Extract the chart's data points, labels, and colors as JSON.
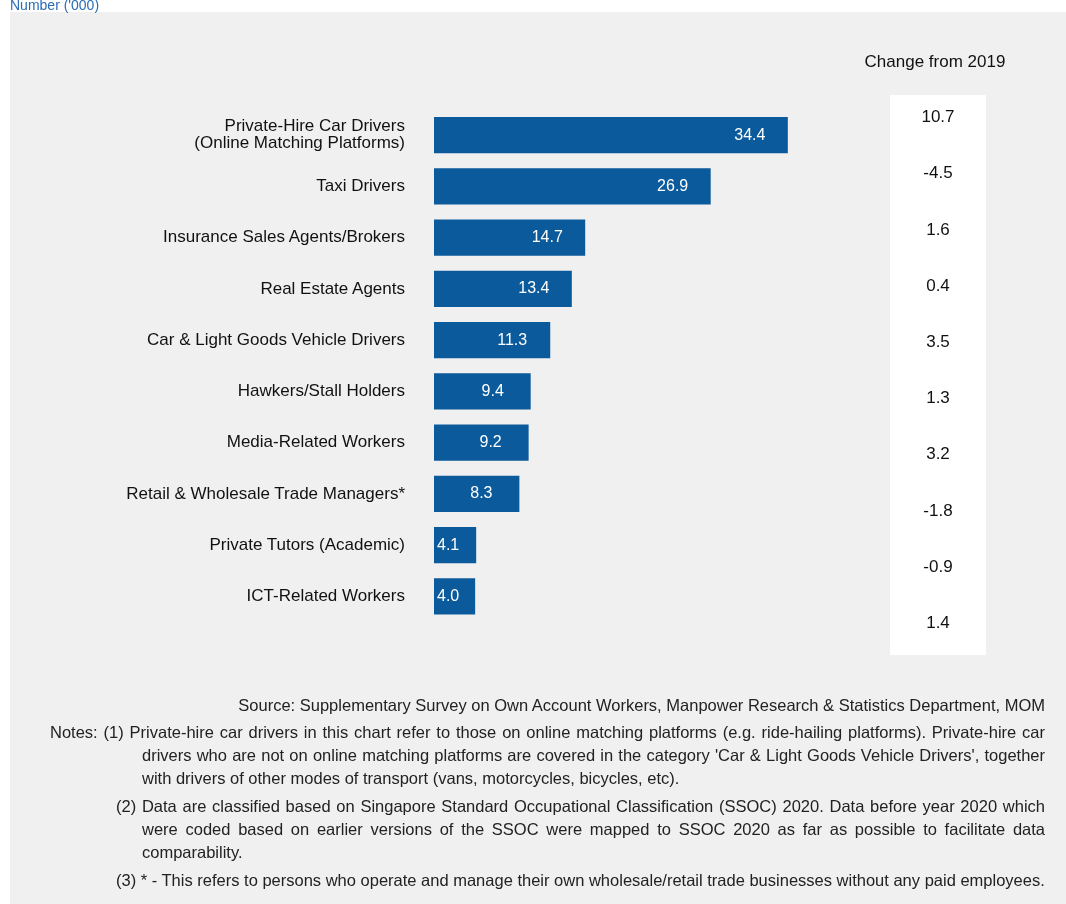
{
  "chart_data": [
    {
      "type": "bar",
      "orientation": "horizontal",
      "subtitle": "Number ('000)",
      "categories": [
        "Private-Hire Car Drivers\n(Online Matching Platforms)",
        "Taxi Drivers",
        "Insurance Sales Agents/Brokers",
        "Real Estate Agents",
        "Car & Light Goods Vehicle Drivers",
        "Hawkers/Stall Holders",
        "Media-Related Workers",
        "Retail & Wholesale Trade Managers*",
        "Private Tutors (Academic)",
        "ICT-Related Workers"
      ],
      "values": [
        34.4,
        26.9,
        14.7,
        13.4,
        11.3,
        9.4,
        9.2,
        8.3,
        4.1,
        4.0
      ],
      "color": "#0b5a9b",
      "value_labels": [
        "34.4",
        "26.9",
        "14.7",
        "13.4",
        "11.3",
        "9.4",
        "9.2",
        "8.3",
        "4.1",
        "4.0"
      ],
      "annotations": [
        "Source: Supplementary Survey on Own Account Workers, Manpower Research & Statistics Department, MOM",
        "Notes: (1) Private-hire car drivers in this chart refer to those on online matching platforms (e.g. ride-hailing platforms). Private-hire car drivers who are not on online matching platforms are covered in the category 'Car & Light Goods Vehicle Drivers', together with drivers of other modes of transport (vans, motorcycles, bicycles, etc).",
        "(2) Data are classified based on Singapore Standard Occupational Classification (SSOC) 2020. Data before year 2020 which were coded based on earlier versions of the SSOC were mapped to SSOC 2020 as far as possible to facilitate data comparability.",
        "(3) * - This refers to persons who operate and manage their own wholesale/retail trade businesses without any paid employees."
      ]
    },
    {
      "type": "other",
      "title": "Change from 2019",
      "values": [
        10.7,
        -4.5,
        1.6,
        0.4,
        3.5,
        1.3,
        3.2,
        -1.8,
        -0.9,
        1.4
      ],
      "data_labels": true
    }
  ]
}
